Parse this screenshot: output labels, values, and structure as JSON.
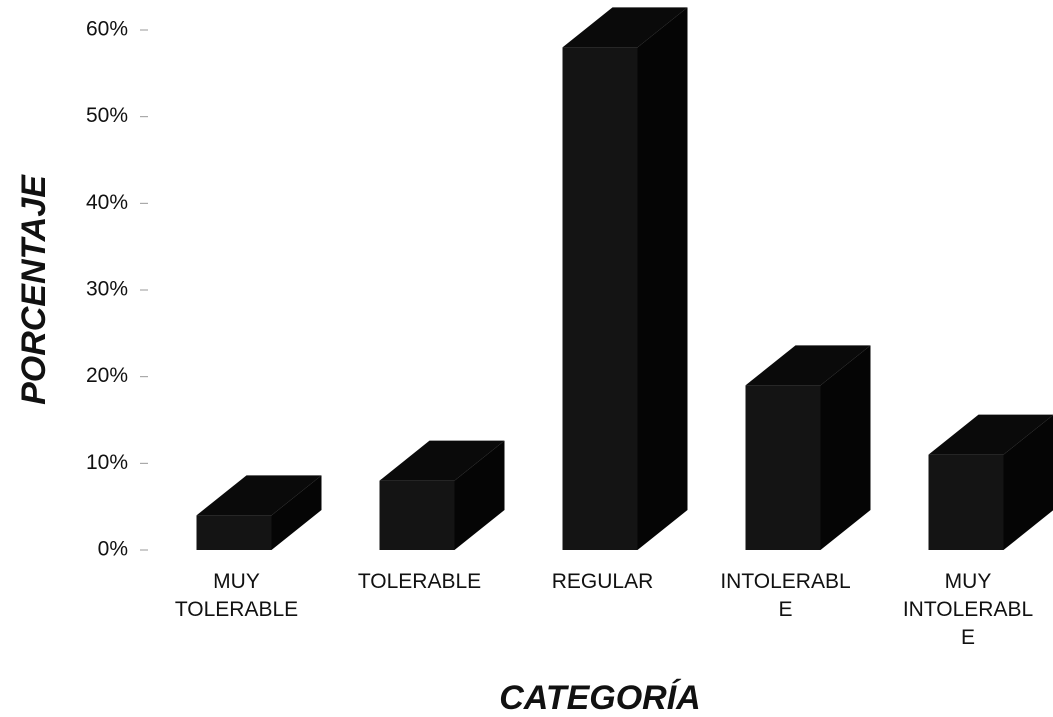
{
  "chart_data": {
    "type": "bar3d",
    "xlabel": "CATEGORÍA",
    "ylabel": "PORCENTAJE",
    "categories": [
      "MUY\nTOLERABLE",
      "TOLERABLE",
      "REGULAR",
      "INTOLERABL\nE",
      "MUY\nINTOLERABL\nE"
    ],
    "values": [
      4,
      8,
      58,
      19,
      11
    ],
    "color": "#141414",
    "ylim": [
      0,
      60
    ],
    "yticks": [
      {
        "value": 0,
        "label": "0%"
      },
      {
        "value": 10,
        "label": "10%"
      },
      {
        "value": 20,
        "label": "20%"
      },
      {
        "value": 30,
        "label": "30%"
      },
      {
        "value": 40,
        "label": "40%"
      },
      {
        "value": 50,
        "label": "50%"
      },
      {
        "value": 60,
        "label": "60%"
      }
    ]
  }
}
